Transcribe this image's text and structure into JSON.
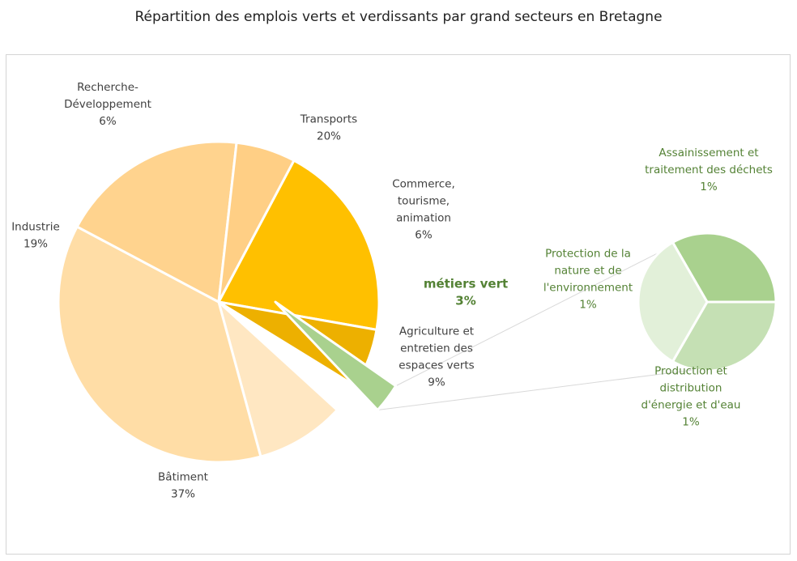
{
  "title": "Répartition des emplois verts et verdissants par grand secteurs en Bretagne",
  "chart_data": [
    {
      "type": "pie",
      "name": "main",
      "slices": [
        {
          "label_lines": [
            "Transports",
            "20%"
          ],
          "value": 20,
          "color": "#FFC000"
        },
        {
          "label_lines": [
            "Commerce,",
            "tourisme,",
            "animation",
            "6%"
          ],
          "value": 6,
          "color": "#EDB000"
        },
        {
          "label_lines": [
            "métiers vert",
            "3%"
          ],
          "value": 3,
          "color": "#A9D18E",
          "highlight": true
        },
        {
          "label_lines": [
            "Agriculture et",
            "entretien des",
            "espaces verts",
            "9%"
          ],
          "value": 9,
          "color": "#FFE7C2"
        },
        {
          "label_lines": [
            "Bâtiment",
            "37%"
          ],
          "value": 37,
          "color": "#FFDDA6"
        },
        {
          "label_lines": [
            "Industrie",
            "19%"
          ],
          "value": 19,
          "color": "#FFD38E"
        },
        {
          "label_lines": [
            "Recherche-",
            "Développement",
            "6%"
          ],
          "value": 6,
          "color": "#FFCF85"
        }
      ]
    },
    {
      "type": "pie",
      "name": "detail",
      "slices": [
        {
          "label_lines": [
            "Assainissement et",
            "traitement des déchets",
            "1%"
          ],
          "value": 1,
          "color": "#A9D18E"
        },
        {
          "label_lines": [
            "Production et",
            "distribution",
            "d'énergie et d'eau",
            "1%"
          ],
          "value": 1,
          "color": "#C5E0B4"
        },
        {
          "label_lines": [
            "Protection de la",
            "nature et de",
            "l'environnement",
            "1%"
          ],
          "value": 1,
          "color": "#E2F0D9"
        }
      ]
    }
  ],
  "colors": {
    "slice_border": "#ffffff",
    "connector": "#d9d9d9",
    "label_text": "#404040",
    "label_green": "#548235"
  }
}
